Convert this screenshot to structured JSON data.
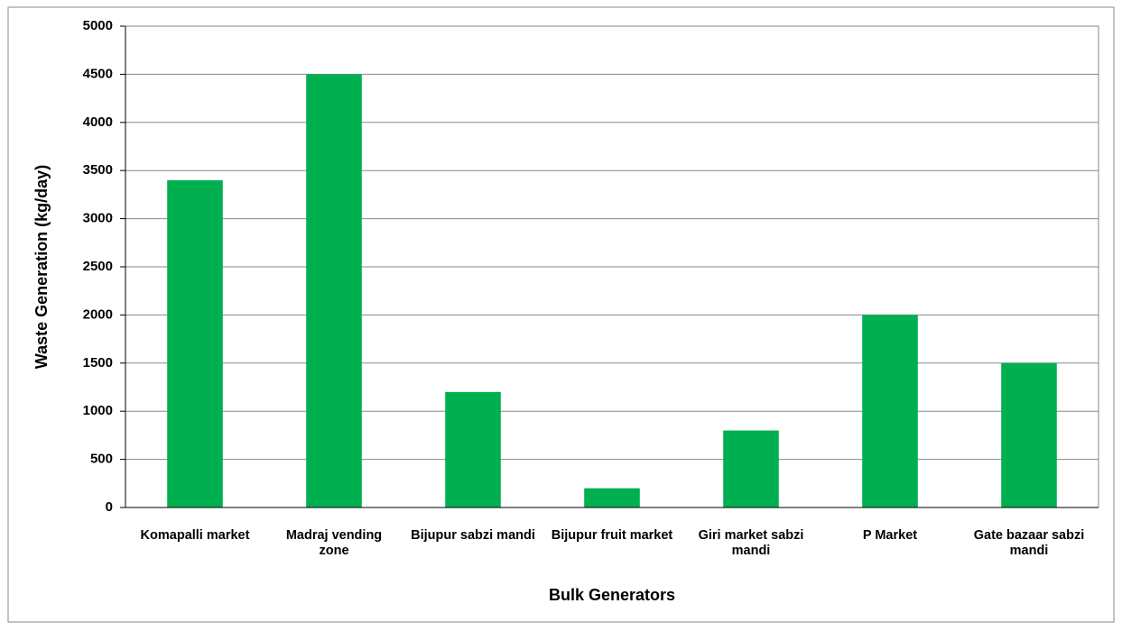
{
  "chart_data": {
    "type": "bar",
    "categories": [
      "Komapalli market",
      "Madraj vending zone",
      "Bijupur sabzi mandi",
      "Bijupur fruit market",
      "Giri market sabzi mandi",
      "P Market",
      "Gate bazaar sabzi mandi"
    ],
    "values": [
      3400,
      4500,
      1200,
      200,
      800,
      2000,
      1500
    ],
    "color": "#00b050",
    "x_label": "Bulk Generators",
    "y_label": "Waste Generation (kg/day)",
    "ylim": [
      0,
      5000
    ],
    "yticks": [
      0,
      500,
      1000,
      1500,
      2000,
      2500,
      3000,
      3500,
      4000,
      4500,
      5000
    ],
    "grid": true
  }
}
